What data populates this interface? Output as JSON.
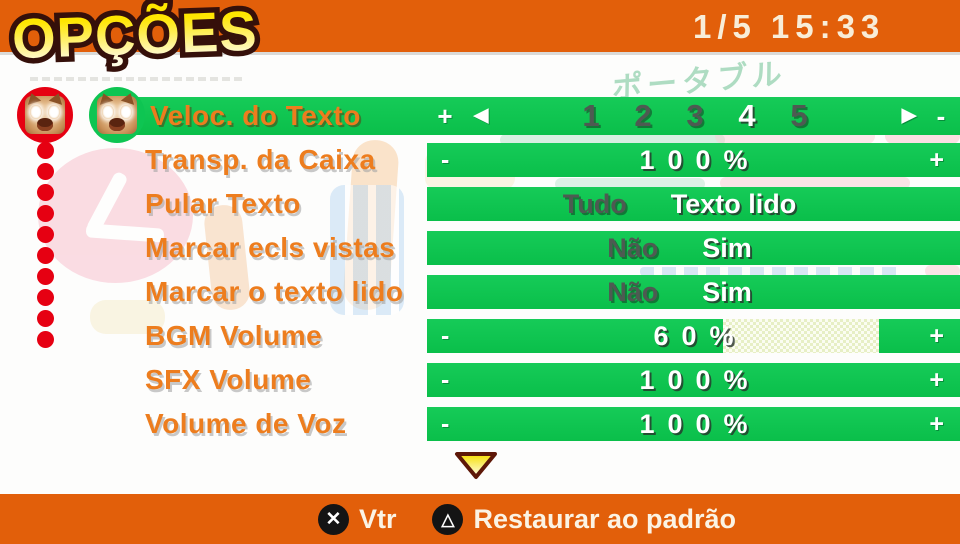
{
  "header": {
    "title": "OPÇÕES",
    "page_indicator": "1/5",
    "clock": "15:33"
  },
  "watermark": {
    "katakana": "ポータブル"
  },
  "glyphs": {
    "plus": "+",
    "minus": "-",
    "left_arrow": "◀",
    "right_arrow": "▶",
    "cross": "✕",
    "triangle": "△",
    "down_arrow": "▼"
  },
  "rows": [
    {
      "label": "Veloc. do Texto",
      "type": "scale",
      "options": [
        "1",
        "2",
        "3",
        "4",
        "5"
      ],
      "selected": "4"
    },
    {
      "label": "Transp. da Caixa",
      "type": "slider",
      "value": "100%",
      "percent": 100
    },
    {
      "label": "Pular Texto",
      "type": "choice",
      "options": [
        "Tudo",
        "Texto lido"
      ],
      "selected": "Texto lido"
    },
    {
      "label": "Marcar ecls vistas",
      "type": "choice",
      "options": [
        "Não",
        "Sim"
      ],
      "selected": "Sim"
    },
    {
      "label": "Marcar o texto lido",
      "type": "choice",
      "options": [
        "Não",
        "Sim"
      ],
      "selected": "Sim"
    },
    {
      "label": "BGM Volume",
      "type": "slider",
      "value": "60%",
      "percent": 60
    },
    {
      "label": "SFX Volume",
      "type": "slider",
      "value": "100%",
      "percent": 100
    },
    {
      "label": "Volume de Voz",
      "type": "slider",
      "value": "100%",
      "percent": 100
    }
  ],
  "footer": {
    "buttons": [
      {
        "button": "cross",
        "label": "Vtr"
      },
      {
        "button": "triangle",
        "label": "Restaurar ao padrão"
      }
    ]
  },
  "colors": {
    "header_orange": "#E25F0A",
    "bar_green": "#0EC552",
    "label_orange": "#ED7D1E",
    "badge_red": "#E60012"
  }
}
